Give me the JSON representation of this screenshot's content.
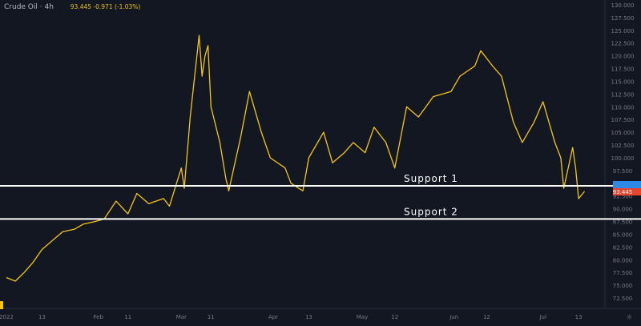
{
  "header": {
    "symbol": "Crude Oil · 4h",
    "quote": "93.445  -0.971 (-1.03%)"
  },
  "colors": {
    "background": "#131722",
    "line": "#f5c518",
    "support": "#ffffff",
    "last_price": "#e8452c",
    "other_label": "#2e8ae6"
  },
  "chart_data": {
    "type": "line",
    "title": "",
    "xlabel": "",
    "ylabel": "",
    "ylim": [
      71,
      131
    ],
    "xlim": [
      "2022-01-01",
      "2022-07-22"
    ],
    "y_ticks": [
      "72.500",
      "75.000",
      "77.500",
      "80.000",
      "82.500",
      "85.000",
      "87.500",
      "90.000",
      "92.500",
      "95.000",
      "97.500",
      "100.000",
      "102.500",
      "105.000",
      "107.500",
      "110.000",
      "112.500",
      "115.000",
      "117.500",
      "120.000",
      "122.500",
      "125.000",
      "127.500",
      "130.000"
    ],
    "x_ticks": [
      {
        "date": "2022-01-01",
        "label": "2022"
      },
      {
        "date": "2022-01-13",
        "label": "13"
      },
      {
        "date": "2022-02-01",
        "label": "Feb"
      },
      {
        "date": "2022-02-11",
        "label": "11"
      },
      {
        "date": "2022-03-01",
        "label": "Mar"
      },
      {
        "date": "2022-03-11",
        "label": "11"
      },
      {
        "date": "2022-04-01",
        "label": "Apr"
      },
      {
        "date": "2022-04-13",
        "label": "13"
      },
      {
        "date": "2022-05-01",
        "label": "May"
      },
      {
        "date": "2022-05-12",
        "label": "12"
      },
      {
        "date": "2022-06-01",
        "label": "Jun"
      },
      {
        "date": "2022-06-12",
        "label": "12"
      },
      {
        "date": "2022-07-01",
        "label": "Jul"
      },
      {
        "date": "2022-07-13",
        "label": "13"
      }
    ],
    "series": [
      {
        "x": [
          "2022-01-01",
          "2022-01-04",
          "2022-01-07",
          "2022-01-10",
          "2022-01-13",
          "2022-01-17",
          "2022-01-20",
          "2022-01-24",
          "2022-01-27",
          "2022-01-31",
          "2022-02-03",
          "2022-02-07",
          "2022-02-11",
          "2022-02-14",
          "2022-02-18",
          "2022-02-23",
          "2022-02-25",
          "2022-03-01",
          "2022-03-02",
          "2022-03-04",
          "2022-03-07",
          "2022-03-08",
          "2022-03-09",
          "2022-03-10",
          "2022-03-11",
          "2022-03-14",
          "2022-03-16",
          "2022-03-17",
          "2022-03-21",
          "2022-03-24",
          "2022-03-28",
          "2022-03-31",
          "2022-04-05",
          "2022-04-07",
          "2022-04-11",
          "2022-04-13",
          "2022-04-18",
          "2022-04-21",
          "2022-04-25",
          "2022-04-28",
          "2022-05-02",
          "2022-05-05",
          "2022-05-09",
          "2022-05-12",
          "2022-05-16",
          "2022-05-20",
          "2022-05-25",
          "2022-05-31",
          "2022-06-03",
          "2022-06-08",
          "2022-06-10",
          "2022-06-14",
          "2022-06-17",
          "2022-06-21",
          "2022-06-24",
          "2022-06-28",
          "2022-07-01",
          "2022-07-05",
          "2022-07-07",
          "2022-07-08",
          "2022-07-11",
          "2022-07-12",
          "2022-07-13",
          "2022-07-15"
        ],
        "y": [
          76.5,
          75.8,
          77.5,
          79.5,
          82.0,
          84.0,
          85.5,
          86.0,
          87.0,
          87.5,
          88.0,
          91.5,
          89.0,
          93.0,
          91.0,
          92.0,
          90.5,
          98.0,
          94.0,
          108.0,
          124.0,
          116.0,
          120.0,
          122.0,
          110.0,
          103.0,
          96.0,
          93.5,
          104.0,
          113.0,
          105.0,
          100.0,
          98.0,
          95.0,
          93.5,
          100.0,
          105.0,
          99.0,
          101.0,
          103.0,
          101.0,
          106.0,
          103.0,
          98.0,
          110.0,
          108.0,
          112.0,
          113.0,
          116.0,
          118.0,
          121.0,
          118.0,
          116.0,
          107.0,
          103.0,
          107.0,
          111.0,
          103.0,
          100.0,
          94.0,
          102.0,
          98.0,
          92.0,
          93.4
        ]
      }
    ],
    "support_levels": [
      {
        "label": "Support 1",
        "value": 94.5
      },
      {
        "label": "Support 2",
        "value": 88.0
      }
    ],
    "last_price": "93.445",
    "grid": false,
    "legend": "none"
  }
}
